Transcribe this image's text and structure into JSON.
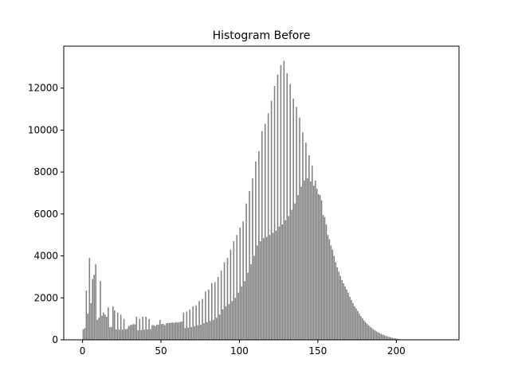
{
  "chart_data": {
    "type": "bar",
    "title": "Histogram Before",
    "xlabel": "",
    "ylabel": "",
    "xlim": [
      -12,
      240
    ],
    "ylim": [
      0,
      14000
    ],
    "xticks": [
      0,
      50,
      100,
      150,
      200
    ],
    "xtick_labels": [
      "0",
      "50",
      "100",
      "150",
      "200"
    ],
    "yticks": [
      0,
      2000,
      4000,
      6000,
      8000,
      10000,
      12000
    ],
    "ytick_labels": [
      "0",
      "2000",
      "4000",
      "6000",
      "8000",
      "10000",
      "12000"
    ],
    "grid": false,
    "bar_color": "#808080",
    "bin_start": 0,
    "bin_width": 1,
    "values": [
      500,
      550,
      2350,
      1250,
      3900,
      1750,
      2900,
      3100,
      3600,
      950,
      1050,
      2800,
      1150,
      1300,
      1200,
      1100,
      1550,
      600,
      620,
      1600,
      1400,
      500,
      1300,
      480,
      1200,
      490,
      1000,
      500,
      520,
      650,
      700,
      720,
      750,
      740,
      1100,
      450,
      1000,
      460,
      1100,
      480,
      1100,
      500,
      990,
      510,
      700,
      700,
      650,
      720,
      730,
      950,
      750,
      760,
      700,
      790,
      810,
      800,
      820,
      830,
      800,
      840,
      830,
      840,
      850,
      880,
      1300,
      560,
      1350,
      580,
      1450,
      610,
      1600,
      650,
      1650,
      700,
      1850,
      720,
      1950,
      800,
      2300,
      850,
      2400,
      900,
      2700,
      950,
      2750,
      1050,
      3000,
      1200,
      3300,
      1450,
      3700,
      1600,
      3900,
      1700,
      4300,
      1850,
      4700,
      2000,
      5000,
      2250,
      5350,
      2550,
      5650,
      2800,
      6500,
      3200,
      7100,
      3600,
      7700,
      4000,
      8500,
      4500,
      9000,
      4700,
      9950,
      4850,
      10300,
      4900,
      10800,
      5000,
      11400,
      5100,
      12100,
      5200,
      12650,
      5400,
      13100,
      5500,
      13300,
      5700,
      12700,
      5900,
      12200,
      6200,
      11500,
      6500,
      11100,
      6900,
      10600,
      7300,
      9900,
      7600,
      9400,
      7700,
      8800,
      7550,
      8300,
      7350,
      7600,
      7200,
      6950,
      6900,
      6650,
      5950,
      5850,
      5500,
      5000,
      4800,
      4500,
      4300,
      4000,
      3700,
      3450,
      3250,
      3050,
      2850,
      2700,
      2550,
      2400,
      2250,
      2050,
      1900,
      1750,
      1600,
      1500,
      1380,
      1250,
      1130,
      1030,
      930,
      840,
      760,
      680,
      620,
      560,
      500,
      450,
      400,
      360,
      320,
      280,
      250,
      220,
      190,
      160,
      140,
      120,
      100,
      80,
      70,
      60,
      40,
      30,
      20,
      10,
      6,
      4,
      3,
      2,
      1
    ]
  }
}
